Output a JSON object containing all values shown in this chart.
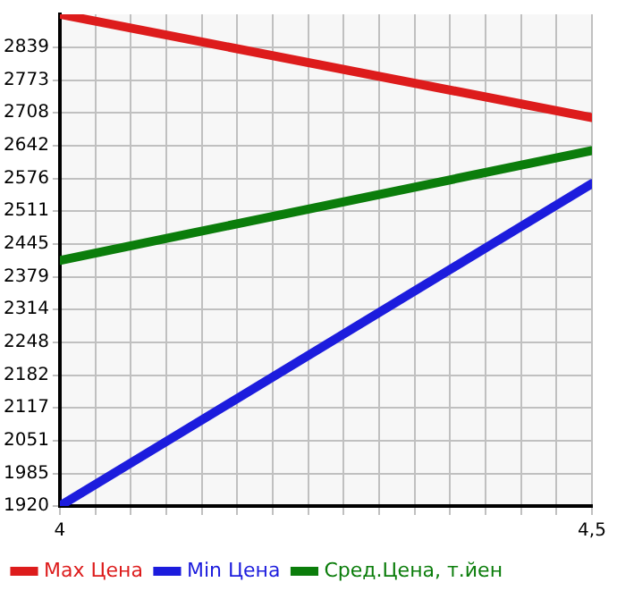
{
  "chart_data": {
    "type": "line",
    "x": [
      4,
      4.5
    ],
    "series": [
      {
        "name": "Max Цена",
        "color": "#dd1c1c",
        "values": [
          2905,
          2698
        ]
      },
      {
        "name": "Min Цена",
        "color": "#1c1cdd",
        "values": [
          1920,
          2566
        ]
      },
      {
        "name": "Сред.Цена, т.йен",
        "color": "#0b7d0b",
        "values": [
          2412,
          2632
        ]
      }
    ],
    "xlim": [
      4,
      4.5
    ],
    "xticks": [
      {
        "value": 4,
        "label": "4"
      },
      {
        "value": 4.0333,
        "label": null
      },
      {
        "value": 4.0667,
        "label": null
      },
      {
        "value": 4.1,
        "label": null
      },
      {
        "value": 4.1333,
        "label": null
      },
      {
        "value": 4.1667,
        "label": null
      },
      {
        "value": 4.2,
        "label": null
      },
      {
        "value": 4.2333,
        "label": null
      },
      {
        "value": 4.2667,
        "label": null
      },
      {
        "value": 4.3,
        "label": null
      },
      {
        "value": 4.3333,
        "label": null
      },
      {
        "value": 4.3667,
        "label": null
      },
      {
        "value": 4.4,
        "label": null
      },
      {
        "value": 4.4333,
        "label": null
      },
      {
        "value": 4.4667,
        "label": null
      },
      {
        "value": 4.5,
        "label": "4,5"
      }
    ],
    "ylim": [
      1920,
      2905
    ],
    "yticks": [
      1920,
      1985,
      2051,
      2117,
      2182,
      2248,
      2314,
      2379,
      2445,
      2511,
      2576,
      2642,
      2708,
      2773,
      2839
    ],
    "grid": true,
    "legend": "bottom",
    "marker": "none",
    "line_style": "solid"
  }
}
